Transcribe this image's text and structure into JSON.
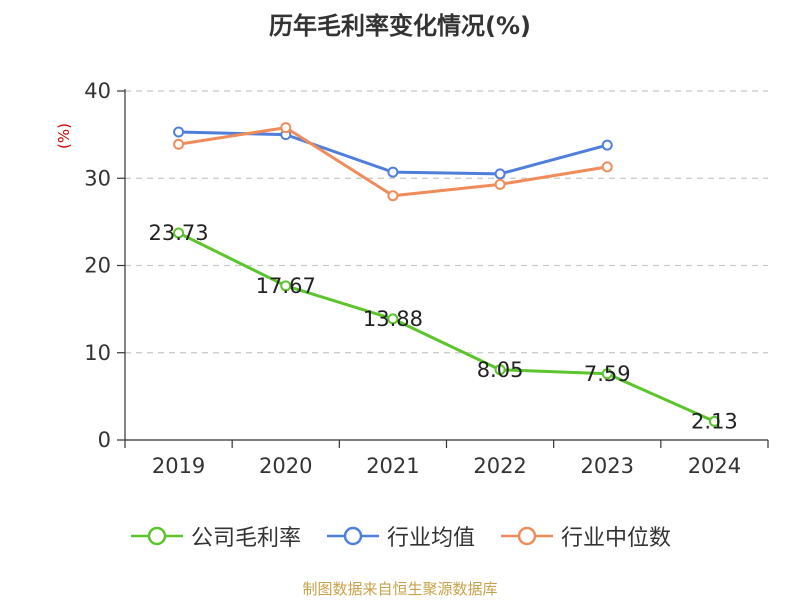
{
  "title": "历年毛利率变化情况(%)",
  "unit_label": "(%)",
  "source": "制图数据来自恒生聚源数据库",
  "colors": {
    "company": "#5cc52c",
    "industry_avg": "#4f7fdb",
    "industry_median": "#f08c5a",
    "unit_label": "#cc0000",
    "source": "#c8a24a"
  },
  "chart_data": {
    "type": "line",
    "categories": [
      "2019",
      "2020",
      "2021",
      "2022",
      "2023",
      "2024"
    ],
    "ylim": [
      0,
      40
    ],
    "yticks": [
      0,
      10,
      20,
      30,
      40
    ],
    "grid": true,
    "legend_position": "bottom",
    "series": [
      {
        "name": "公司毛利率",
        "color": "#5cc52c",
        "values": [
          23.73,
          17.67,
          13.88,
          8.05,
          7.59,
          2.13
        ],
        "labels": [
          "23.73",
          "17.67",
          "13.88",
          "8.05",
          "7.59",
          "2.13"
        ]
      },
      {
        "name": "行业均值",
        "color": "#4f7fdb",
        "values": [
          35.3,
          35.0,
          30.7,
          30.5,
          33.8,
          null
        ]
      },
      {
        "name": "行业中位数",
        "color": "#f08c5a",
        "values": [
          33.9,
          35.8,
          28.0,
          29.3,
          31.3,
          null
        ]
      }
    ]
  }
}
